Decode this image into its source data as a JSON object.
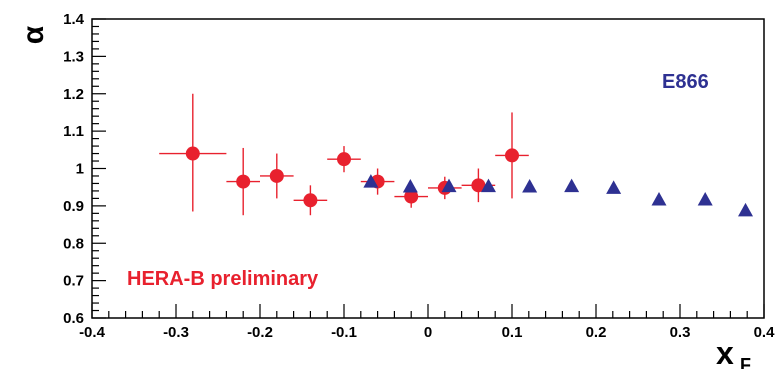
{
  "chart_data": {
    "type": "scatter",
    "xlim": [
      -0.4,
      0.4
    ],
    "ylim": [
      0.6,
      1.4
    ],
    "xlabel": "x",
    "xlabel_subscript": "F",
    "ylabel": "α",
    "x_ticks": [
      "-0.4",
      "-0.3",
      "-0.2",
      "-0.1",
      "0",
      "0.1",
      "0.2",
      "0.3",
      "0.4"
    ],
    "y_ticks": [
      "0.6",
      "0.7",
      "0.8",
      "0.9",
      "1",
      "1.1",
      "1.2",
      "1.3",
      "1.4"
    ],
    "grid": false,
    "annotations": [
      {
        "text": "E866",
        "color": "#2e3192"
      },
      {
        "text": "HERA-B preliminary",
        "color": "#e8212e"
      }
    ],
    "series": [
      {
        "name": "HERA-B preliminary",
        "marker": "circle",
        "color": "#e8212e",
        "points": [
          {
            "x": -0.28,
            "y": 1.04,
            "xerr": 0.04,
            "yerr": [
              0.155,
              0.16
            ]
          },
          {
            "x": -0.22,
            "y": 0.965,
            "xerr": 0.02,
            "yerr": [
              0.09,
              0.09
            ]
          },
          {
            "x": -0.18,
            "y": 0.98,
            "xerr": 0.02,
            "yerr": [
              0.06,
              0.06
            ]
          },
          {
            "x": -0.14,
            "y": 0.915,
            "xerr": 0.02,
            "yerr": [
              0.04,
              0.04
            ]
          },
          {
            "x": -0.1,
            "y": 1.025,
            "xerr": 0.02,
            "yerr": [
              0.035,
              0.035
            ]
          },
          {
            "x": -0.06,
            "y": 0.965,
            "xerr": 0.02,
            "yerr": [
              0.035,
              0.035
            ]
          },
          {
            "x": -0.02,
            "y": 0.925,
            "xerr": 0.02,
            "yerr": [
              0.03,
              0.03
            ]
          },
          {
            "x": 0.02,
            "y": 0.948,
            "xerr": 0.02,
            "yerr": [
              0.03,
              0.03
            ]
          },
          {
            "x": 0.06,
            "y": 0.955,
            "xerr": 0.02,
            "yerr": [
              0.045,
              0.045
            ]
          },
          {
            "x": 0.1,
            "y": 1.035,
            "xerr": 0.02,
            "yerr": [
              0.115,
              0.115
            ]
          }
        ]
      },
      {
        "name": "E866",
        "marker": "triangle",
        "color": "#2e3192",
        "points": [
          {
            "x": -0.068,
            "y": 0.965
          },
          {
            "x": -0.021,
            "y": 0.952
          },
          {
            "x": 0.025,
            "y": 0.953
          },
          {
            "x": 0.072,
            "y": 0.953
          },
          {
            "x": 0.121,
            "y": 0.952
          },
          {
            "x": 0.171,
            "y": 0.953
          },
          {
            "x": 0.221,
            "y": 0.948
          },
          {
            "x": 0.275,
            "y": 0.917
          },
          {
            "x": 0.33,
            "y": 0.917
          },
          {
            "x": 0.378,
            "y": 0.888
          }
        ]
      }
    ]
  }
}
